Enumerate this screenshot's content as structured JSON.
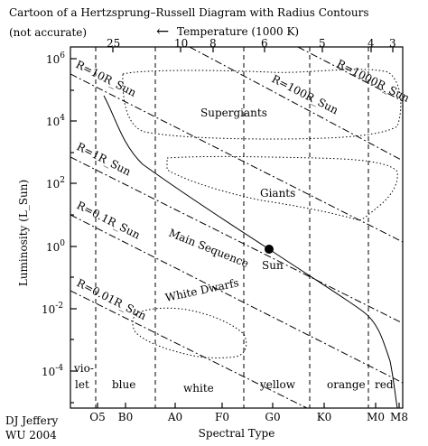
{
  "title": "Cartoon of a Hertzsprung–Russell Diagram with Radius Contours",
  "subtitle": "(not accurate)",
  "temperature_axis": {
    "label": "Temperature (1000 K)",
    "arrow": "←",
    "ticks": [
      "25",
      "10",
      "8",
      "6",
      "5",
      "4",
      "3"
    ]
  },
  "y_axis": {
    "label": "Luminosity (L_Sun)",
    "ticks": [
      {
        "base": "10",
        "exp": "6"
      },
      {
        "base": "10",
        "exp": "4"
      },
      {
        "base": "10",
        "exp": "2"
      },
      {
        "base": "10",
        "exp": "0"
      },
      {
        "base": "10",
        "exp": "-2"
      },
      {
        "base": "10",
        "exp": "-4"
      }
    ]
  },
  "x_axis": {
    "label": "Spectral Type",
    "ticks": [
      "O5",
      "B0",
      "A0",
      "F0",
      "G0",
      "K0",
      "M0",
      "M8"
    ]
  },
  "colors": {
    "vio": "vio-",
    "let": "let",
    "blue": "blue",
    "white": "white",
    "yellow": "yellow",
    "orange": "orange",
    "red": "red"
  },
  "radius_lines": [
    "R=1000R_Sun",
    "R=100R_Sun",
    "R=10R_Sun",
    "R=1R_Sun",
    "R=0.1R_Sun",
    "R=0.01R_Sun"
  ],
  "regions": {
    "supergiants": "Supergiants",
    "giants": "Giants",
    "main_sequence": "Main Sequence",
    "white_dwarfs": "White Dwarfs",
    "sun": "Sun"
  },
  "credit": {
    "line1": "DJ Jeffery",
    "line2": "WU 2004"
  }
}
